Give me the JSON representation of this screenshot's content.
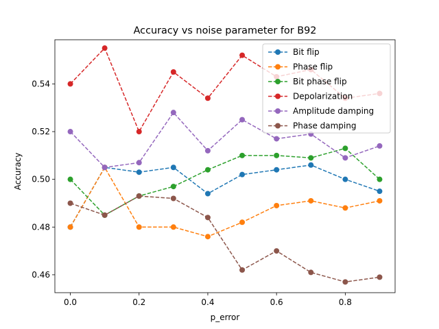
{
  "chart_data": {
    "type": "line",
    "title": "Accuracy vs noise parameter for B92",
    "xlabel": "p_error",
    "ylabel": "Accuracy",
    "xlim": [
      -0.045,
      0.945
    ],
    "ylim": [
      0.4525,
      0.5585
    ],
    "xticks": [
      0.0,
      0.2,
      0.4,
      0.6,
      0.8
    ],
    "xtick_labels": [
      "0.0",
      "0.2",
      "0.4",
      "0.6",
      "0.8"
    ],
    "yticks": [
      0.46,
      0.48,
      0.5,
      0.52,
      0.54
    ],
    "ytick_labels": [
      "0.46",
      "0.48",
      "0.50",
      "0.52",
      "0.54"
    ],
    "grid": false,
    "legend_position": "upper right",
    "line_style": "dashed",
    "marker": "circle",
    "x": [
      0.0,
      0.1,
      0.2,
      0.3,
      0.4,
      0.5,
      0.6,
      0.7,
      0.8,
      0.9
    ],
    "series": [
      {
        "name": "Bit flip",
        "color": "#1f77b4",
        "values": [
          0.48,
          0.505,
          0.503,
          0.505,
          0.494,
          0.502,
          0.504,
          0.506,
          0.5,
          0.495
        ]
      },
      {
        "name": "Phase flip",
        "color": "#ff7f0e",
        "values": [
          0.48,
          0.505,
          0.48,
          0.48,
          0.476,
          0.482,
          0.489,
          0.491,
          0.488,
          0.491
        ]
      },
      {
        "name": "Bit phase flip",
        "color": "#2ca02c",
        "values": [
          0.5,
          0.485,
          0.493,
          0.497,
          0.504,
          0.51,
          0.51,
          0.509,
          0.513,
          0.5
        ]
      },
      {
        "name": "Depolarization",
        "color": "#d62728",
        "values": [
          0.54,
          0.555,
          0.52,
          0.545,
          0.534,
          0.552,
          0.543,
          0.546,
          0.534,
          0.536
        ]
      },
      {
        "name": "Amplitude damping",
        "color": "#9467bd",
        "values": [
          0.52,
          0.505,
          0.507,
          0.528,
          0.512,
          0.525,
          0.517,
          0.519,
          0.509,
          0.514
        ]
      },
      {
        "name": "Phase damping",
        "color": "#8c564b",
        "values": [
          0.49,
          0.485,
          0.493,
          0.492,
          0.484,
          0.462,
          0.47,
          0.461,
          0.457,
          0.459
        ]
      }
    ]
  }
}
